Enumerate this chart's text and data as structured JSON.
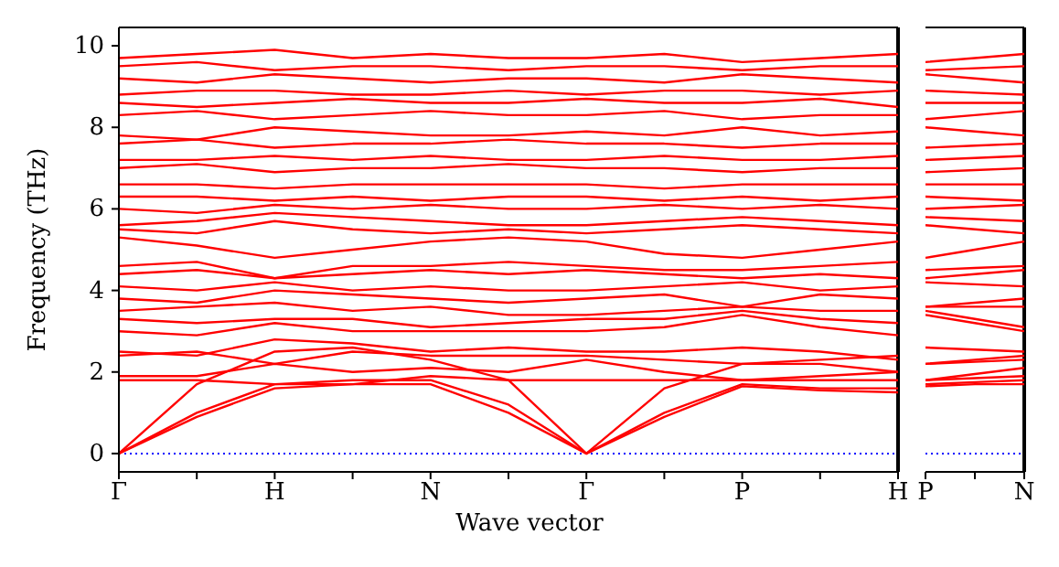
{
  "chart_data": [
    {
      "type": "line",
      "xlabel": "Wave vector",
      "ylabel": "Frequency (THz)",
      "categories": [
        "Γ",
        null,
        "H",
        null,
        "N",
        null,
        "Γ",
        null,
        "P",
        null,
        "H"
      ],
      "ylim": [
        -0.45,
        10.45
      ],
      "yticks": [
        0,
        2,
        4,
        6,
        8,
        10
      ],
      "ref_lines": [
        {
          "axis": "y",
          "value": 0,
          "color": "#0000ff",
          "line_style": "dotted"
        }
      ],
      "series": [
        {
          "color": "#ff0000",
          "values": [
            0,
            1.0,
            1.7,
            1.8,
            1.8,
            1.2,
            0,
            1.0,
            1.7,
            1.6,
            1.6
          ]
        },
        {
          "color": "#ff0000",
          "values": [
            0,
            0.9,
            1.6,
            1.7,
            1.7,
            1.0,
            0,
            0.9,
            1.65,
            1.55,
            1.5
          ]
        },
        {
          "color": "#ff0000",
          "values": [
            0,
            1.7,
            2.5,
            2.6,
            2.3,
            1.8,
            0,
            1.6,
            2.2,
            2.2,
            2.0
          ]
        },
        {
          "color": "#ff0000",
          "values": [
            1.8,
            1.8,
            1.7,
            1.7,
            1.9,
            1.8,
            1.8,
            1.8,
            1.8,
            1.8,
            1.8
          ]
        },
        {
          "color": "#ff0000",
          "values": [
            1.9,
            1.9,
            2.2,
            2.0,
            2.1,
            2.0,
            2.3,
            2.0,
            1.8,
            1.9,
            2.0
          ]
        },
        {
          "color": "#ff0000",
          "values": [
            2.4,
            2.5,
            2.2,
            2.5,
            2.4,
            2.4,
            2.4,
            2.3,
            2.2,
            2.3,
            2.4
          ]
        },
        {
          "color": "#ff0000",
          "values": [
            2.5,
            2.4,
            2.8,
            2.7,
            2.5,
            2.6,
            2.5,
            2.5,
            2.6,
            2.5,
            2.3
          ]
        },
        {
          "color": "#ff0000",
          "values": [
            3.0,
            2.9,
            3.2,
            3.0,
            3.0,
            3.0,
            3.0,
            3.1,
            3.4,
            3.1,
            2.9
          ]
        },
        {
          "color": "#ff0000",
          "values": [
            3.3,
            3.2,
            3.3,
            3.3,
            3.1,
            3.2,
            3.3,
            3.3,
            3.5,
            3.3,
            3.2
          ]
        },
        {
          "color": "#ff0000",
          "values": [
            3.5,
            3.6,
            3.7,
            3.5,
            3.6,
            3.4,
            3.4,
            3.5,
            3.6,
            3.5,
            3.5
          ]
        },
        {
          "color": "#ff0000",
          "values": [
            3.8,
            3.7,
            4.0,
            3.9,
            3.8,
            3.7,
            3.8,
            3.9,
            3.6,
            3.9,
            3.8
          ]
        },
        {
          "color": "#ff0000",
          "values": [
            4.1,
            4.0,
            4.2,
            4.0,
            4.1,
            4.0,
            4.0,
            4.1,
            4.2,
            4.0,
            4.1
          ]
        },
        {
          "color": "#ff0000",
          "values": [
            4.4,
            4.5,
            4.3,
            4.4,
            4.5,
            4.4,
            4.5,
            4.4,
            4.3,
            4.4,
            4.3
          ]
        },
        {
          "color": "#ff0000",
          "values": [
            4.6,
            4.7,
            4.3,
            4.6,
            4.6,
            4.7,
            4.6,
            4.5,
            4.5,
            4.6,
            4.7
          ]
        },
        {
          "color": "#ff0000",
          "values": [
            5.3,
            5.1,
            4.8,
            5.0,
            5.2,
            5.3,
            5.2,
            4.9,
            4.8,
            5.0,
            5.2
          ]
        },
        {
          "color": "#ff0000",
          "values": [
            5.5,
            5.4,
            5.7,
            5.5,
            5.4,
            5.5,
            5.4,
            5.5,
            5.6,
            5.5,
            5.4
          ]
        },
        {
          "color": "#ff0000",
          "values": [
            5.6,
            5.7,
            5.9,
            5.8,
            5.7,
            5.6,
            5.6,
            5.7,
            5.8,
            5.7,
            5.6
          ]
        },
        {
          "color": "#ff0000",
          "values": [
            6.0,
            5.9,
            6.1,
            6.0,
            6.1,
            6.0,
            6.0,
            6.1,
            6.0,
            6.1,
            6.0
          ]
        },
        {
          "color": "#ff0000",
          "values": [
            6.3,
            6.3,
            6.2,
            6.3,
            6.2,
            6.3,
            6.3,
            6.2,
            6.3,
            6.2,
            6.3
          ]
        },
        {
          "color": "#ff0000",
          "values": [
            6.6,
            6.6,
            6.5,
            6.6,
            6.6,
            6.6,
            6.6,
            6.5,
            6.6,
            6.6,
            6.6
          ]
        },
        {
          "color": "#ff0000",
          "values": [
            7.0,
            7.1,
            6.9,
            7.0,
            7.0,
            7.1,
            7.0,
            7.0,
            6.9,
            7.0,
            7.0
          ]
        },
        {
          "color": "#ff0000",
          "values": [
            7.2,
            7.2,
            7.3,
            7.2,
            7.3,
            7.2,
            7.2,
            7.3,
            7.2,
            7.2,
            7.3
          ]
        },
        {
          "color": "#ff0000",
          "values": [
            7.6,
            7.7,
            7.5,
            7.6,
            7.6,
            7.7,
            7.6,
            7.6,
            7.5,
            7.6,
            7.6
          ]
        },
        {
          "color": "#ff0000",
          "values": [
            7.8,
            7.7,
            8.0,
            7.9,
            7.8,
            7.8,
            7.9,
            7.8,
            8.0,
            7.8,
            7.9
          ]
        },
        {
          "color": "#ff0000",
          "values": [
            8.3,
            8.4,
            8.2,
            8.3,
            8.4,
            8.3,
            8.3,
            8.4,
            8.2,
            8.3,
            8.3
          ]
        },
        {
          "color": "#ff0000",
          "values": [
            8.6,
            8.5,
            8.6,
            8.7,
            8.6,
            8.6,
            8.7,
            8.6,
            8.6,
            8.7,
            8.5
          ]
        },
        {
          "color": "#ff0000",
          "values": [
            8.8,
            8.9,
            8.9,
            8.8,
            8.8,
            8.9,
            8.8,
            8.9,
            8.9,
            8.8,
            8.9
          ]
        },
        {
          "color": "#ff0000",
          "values": [
            9.2,
            9.1,
            9.3,
            9.2,
            9.1,
            9.2,
            9.2,
            9.1,
            9.3,
            9.2,
            9.1
          ]
        },
        {
          "color": "#ff0000",
          "values": [
            9.5,
            9.6,
            9.4,
            9.5,
            9.5,
            9.4,
            9.5,
            9.5,
            9.4,
            9.5,
            9.5
          ]
        },
        {
          "color": "#ff0000",
          "values": [
            9.7,
            9.8,
            9.9,
            9.7,
            9.8,
            9.7,
            9.7,
            9.8,
            9.6,
            9.7,
            9.8
          ]
        }
      ]
    },
    {
      "type": "line",
      "tick_labels": "x",
      "categories": [
        "P",
        null,
        "N"
      ],
      "ylim": [
        -0.45,
        10.45
      ],
      "yticks": [
        0,
        2,
        4,
        6,
        8,
        10
      ],
      "ref_lines": [
        {
          "axis": "y",
          "value": 0,
          "color": "#0000ff",
          "line_style": "dotted"
        }
      ],
      "series": [
        {
          "color": "#ff0000",
          "values": [
            1.7,
            1.75,
            1.8
          ]
        },
        {
          "color": "#ff0000",
          "values": [
            1.65,
            1.7,
            1.7
          ]
        },
        {
          "color": "#ff0000",
          "values": [
            2.2,
            2.25,
            2.3
          ]
        },
        {
          "color": "#ff0000",
          "values": [
            1.8,
            1.85,
            1.9
          ]
        },
        {
          "color": "#ff0000",
          "values": [
            1.8,
            1.95,
            2.1
          ]
        },
        {
          "color": "#ff0000",
          "values": [
            2.2,
            2.3,
            2.4
          ]
        },
        {
          "color": "#ff0000",
          "values": [
            2.6,
            2.55,
            2.5
          ]
        },
        {
          "color": "#ff0000",
          "values": [
            3.4,
            3.2,
            3.0
          ]
        },
        {
          "color": "#ff0000",
          "values": [
            3.5,
            3.3,
            3.1
          ]
        },
        {
          "color": "#ff0000",
          "values": [
            3.6,
            3.6,
            3.6
          ]
        },
        {
          "color": "#ff0000",
          "values": [
            3.6,
            3.7,
            3.8
          ]
        },
        {
          "color": "#ff0000",
          "values": [
            4.2,
            4.15,
            4.1
          ]
        },
        {
          "color": "#ff0000",
          "values": [
            4.3,
            4.4,
            4.5
          ]
        },
        {
          "color": "#ff0000",
          "values": [
            4.5,
            4.55,
            4.6
          ]
        },
        {
          "color": "#ff0000",
          "values": [
            4.8,
            5.0,
            5.2
          ]
        },
        {
          "color": "#ff0000",
          "values": [
            5.6,
            5.5,
            5.4
          ]
        },
        {
          "color": "#ff0000",
          "values": [
            5.8,
            5.75,
            5.7
          ]
        },
        {
          "color": "#ff0000",
          "values": [
            6.0,
            6.05,
            6.1
          ]
        },
        {
          "color": "#ff0000",
          "values": [
            6.3,
            6.25,
            6.2
          ]
        },
        {
          "color": "#ff0000",
          "values": [
            6.6,
            6.6,
            6.6
          ]
        },
        {
          "color": "#ff0000",
          "values": [
            6.9,
            6.95,
            7.0
          ]
        },
        {
          "color": "#ff0000",
          "values": [
            7.2,
            7.25,
            7.3
          ]
        },
        {
          "color": "#ff0000",
          "values": [
            7.5,
            7.55,
            7.6
          ]
        },
        {
          "color": "#ff0000",
          "values": [
            8.0,
            7.9,
            7.8
          ]
        },
        {
          "color": "#ff0000",
          "values": [
            8.2,
            8.3,
            8.4
          ]
        },
        {
          "color": "#ff0000",
          "values": [
            8.6,
            8.6,
            8.6
          ]
        },
        {
          "color": "#ff0000",
          "values": [
            8.9,
            8.85,
            8.8
          ]
        },
        {
          "color": "#ff0000",
          "values": [
            9.3,
            9.2,
            9.1
          ]
        },
        {
          "color": "#ff0000",
          "values": [
            9.4,
            9.45,
            9.5
          ]
        },
        {
          "color": "#ff0000",
          "values": [
            9.6,
            9.7,
            9.8
          ]
        }
      ]
    }
  ]
}
